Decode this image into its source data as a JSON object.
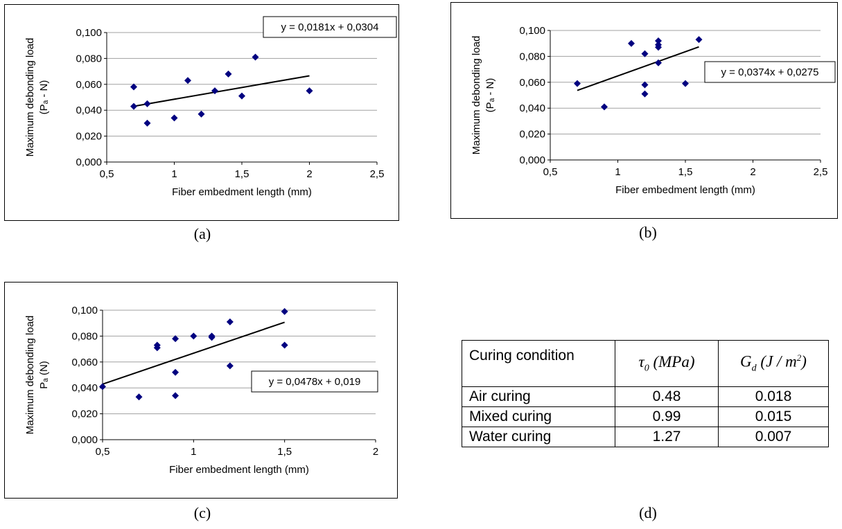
{
  "chart_data": [
    {
      "id": "a",
      "type": "scatter",
      "ylabel_line1": "Maximum debonding load",
      "ylabel_line2": "(Pₐ - N)",
      "xlabel": "Fiber embedment length (mm)",
      "xlim": [
        0.5,
        2.5
      ],
      "ylim": [
        0.0,
        0.1
      ],
      "xticks": [
        "0,5",
        "1",
        "1,5",
        "2",
        "2,5"
      ],
      "yticks": [
        "0,000",
        "0,020",
        "0,040",
        "0,060",
        "0,080",
        "0,100"
      ],
      "grid": "horizontal",
      "points": [
        [
          0.7,
          0.058
        ],
        [
          0.7,
          0.043
        ],
        [
          0.8,
          0.045
        ],
        [
          0.8,
          0.03
        ],
        [
          1.0,
          0.034
        ],
        [
          1.1,
          0.063
        ],
        [
          1.2,
          0.037
        ],
        [
          1.3,
          0.055
        ],
        [
          1.4,
          0.068
        ],
        [
          1.5,
          0.051
        ],
        [
          1.6,
          0.081
        ],
        [
          2.0,
          0.055
        ]
      ],
      "trendline": {
        "slope": 0.0181,
        "intercept": 0.0304,
        "x_range": [
          0.7,
          2.0
        ]
      },
      "equation": "y = 0,0181x + 0,0304",
      "color": "#000080"
    },
    {
      "id": "b",
      "type": "scatter",
      "ylabel_line1": "Maximum debonding load",
      "ylabel_line2": "(Pₐ - N)",
      "xlabel": "Fiber embedment length (mm)",
      "xlim": [
        0.5,
        2.5
      ],
      "ylim": [
        0.0,
        0.1
      ],
      "xticks": [
        "0,5",
        "1",
        "1,5",
        "2",
        "2,5"
      ],
      "yticks": [
        "0,000",
        "0,020",
        "0,040",
        "0,060",
        "0,080",
        "0,100"
      ],
      "grid": "horizontal",
      "points": [
        [
          0.7,
          0.059
        ],
        [
          0.9,
          0.041
        ],
        [
          1.1,
          0.09
        ],
        [
          1.2,
          0.082
        ],
        [
          1.2,
          0.058
        ],
        [
          1.2,
          0.051
        ],
        [
          1.3,
          0.092
        ],
        [
          1.3,
          0.089
        ],
        [
          1.3,
          0.087
        ],
        [
          1.3,
          0.075
        ],
        [
          1.5,
          0.059
        ],
        [
          1.6,
          0.093
        ]
      ],
      "trendline": {
        "slope": 0.0374,
        "intercept": 0.0275,
        "x_range": [
          0.7,
          1.6
        ]
      },
      "equation": "y = 0,0374x + 0,0275",
      "color": "#000080"
    },
    {
      "id": "c",
      "type": "scatter",
      "ylabel_line1": "Maximum debonding load",
      "ylabel_line2": "Pₐ (N)",
      "xlabel": "Fiber embedment length (mm)",
      "xlim": [
        0.5,
        2.0
      ],
      "ylim": [
        0.0,
        0.1
      ],
      "xticks": [
        "0,5",
        "1",
        "1,5",
        "2"
      ],
      "yticks": [
        "0,000",
        "0,020",
        "0,040",
        "0,060",
        "0,080",
        "0,100"
      ],
      "grid": "horizontal",
      "points": [
        [
          0.5,
          0.041
        ],
        [
          0.7,
          0.033
        ],
        [
          0.8,
          0.073
        ],
        [
          0.8,
          0.071
        ],
        [
          0.9,
          0.078
        ],
        [
          0.9,
          0.052
        ],
        [
          0.9,
          0.034
        ],
        [
          1.0,
          0.08
        ],
        [
          1.1,
          0.08
        ],
        [
          1.1,
          0.079
        ],
        [
          1.2,
          0.091
        ],
        [
          1.2,
          0.057
        ],
        [
          1.5,
          0.099
        ],
        [
          1.5,
          0.073
        ]
      ],
      "trendline": {
        "slope": 0.0478,
        "intercept": 0.019,
        "x_range": [
          0.5,
          1.5
        ]
      },
      "equation": "y = 0,0478x + 0,019",
      "color": "#000080"
    }
  ],
  "captions": {
    "a": "(a)",
    "b": "(b)",
    "c": "(c)",
    "d": "(d)"
  },
  "table": {
    "headers": [
      "Curing condition",
      "τ₀ (MPa)",
      "G_d (J / m²)"
    ],
    "rows": [
      [
        "Air curing",
        "0.48",
        "0.018"
      ],
      [
        "Mixed curing",
        "0.99",
        "0.015"
      ],
      [
        "Water curing",
        "1.27",
        "0.007"
      ]
    ]
  }
}
